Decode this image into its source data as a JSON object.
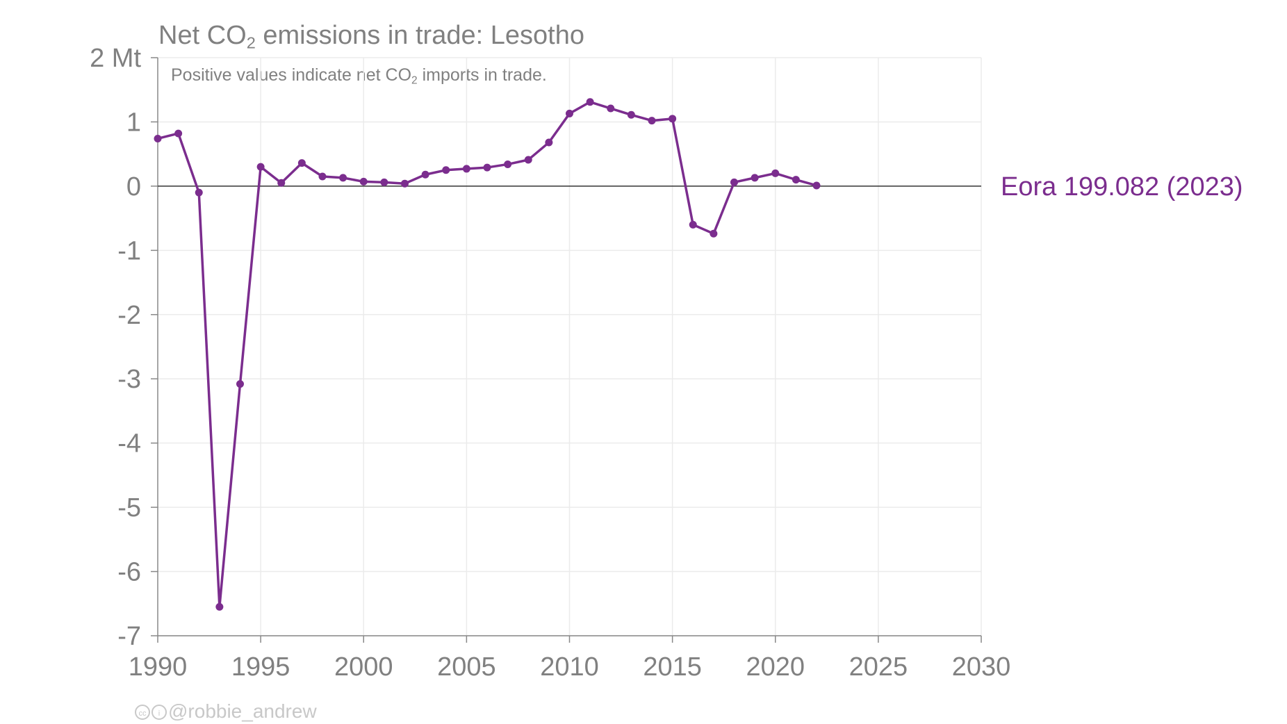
{
  "title": {
    "prefix": "Net CO",
    "sub": "2",
    "suffix": " emissions in trade: Lesotho"
  },
  "subtitle": {
    "prefix": "Positive values indicate net CO",
    "sub": "2",
    "suffix": " imports in trade."
  },
  "credit": {
    "cc_icon": "cc",
    "by_icon": "i",
    "handle": "@robbie_andrew"
  },
  "colors": {
    "series": "#7b2d8e",
    "text": "#808080",
    "grid": "#ebebeb",
    "zero_line": "#333333",
    "credit": "#c8c8c8"
  },
  "chart_data": {
    "type": "line",
    "ylim": [
      -7,
      2
    ],
    "xlim": [
      1990,
      2030
    ],
    "y_ticks": [
      {
        "value": 2,
        "label": "2 Mt"
      },
      {
        "value": 1,
        "label": "1"
      },
      {
        "value": 0,
        "label": "0"
      },
      {
        "value": -1,
        "label": "-1"
      },
      {
        "value": -2,
        "label": "-2"
      },
      {
        "value": -3,
        "label": "-3"
      },
      {
        "value": -4,
        "label": "-4"
      },
      {
        "value": -5,
        "label": "-5"
      },
      {
        "value": -6,
        "label": "-6"
      },
      {
        "value": -7,
        "label": "-7"
      }
    ],
    "x_ticks": [
      1990,
      1995,
      2000,
      2005,
      2010,
      2015,
      2020,
      2025,
      2030
    ],
    "grid": true,
    "series": [
      {
        "name": "Eora 199.082 (2023)",
        "color": "#7b2d8e",
        "x": [
          1990,
          1991,
          1992,
          1993,
          1994,
          1995,
          1996,
          1997,
          1998,
          1999,
          2000,
          2001,
          2002,
          2003,
          2004,
          2005,
          2006,
          2007,
          2008,
          2009,
          2010,
          2011,
          2012,
          2013,
          2014,
          2015,
          2016,
          2017,
          2018,
          2019,
          2020,
          2021,
          2022
        ],
        "values": [
          0.74,
          0.82,
          -0.1,
          -6.55,
          -3.08,
          0.3,
          0.05,
          0.36,
          0.15,
          0.13,
          0.07,
          0.06,
          0.04,
          0.18,
          0.25,
          0.27,
          0.29,
          0.34,
          0.41,
          0.68,
          1.13,
          1.31,
          1.21,
          1.11,
          1.02,
          1.05,
          -0.6,
          -0.74,
          0.06,
          0.13,
          0.2,
          0.1,
          0.01
        ]
      }
    ]
  }
}
